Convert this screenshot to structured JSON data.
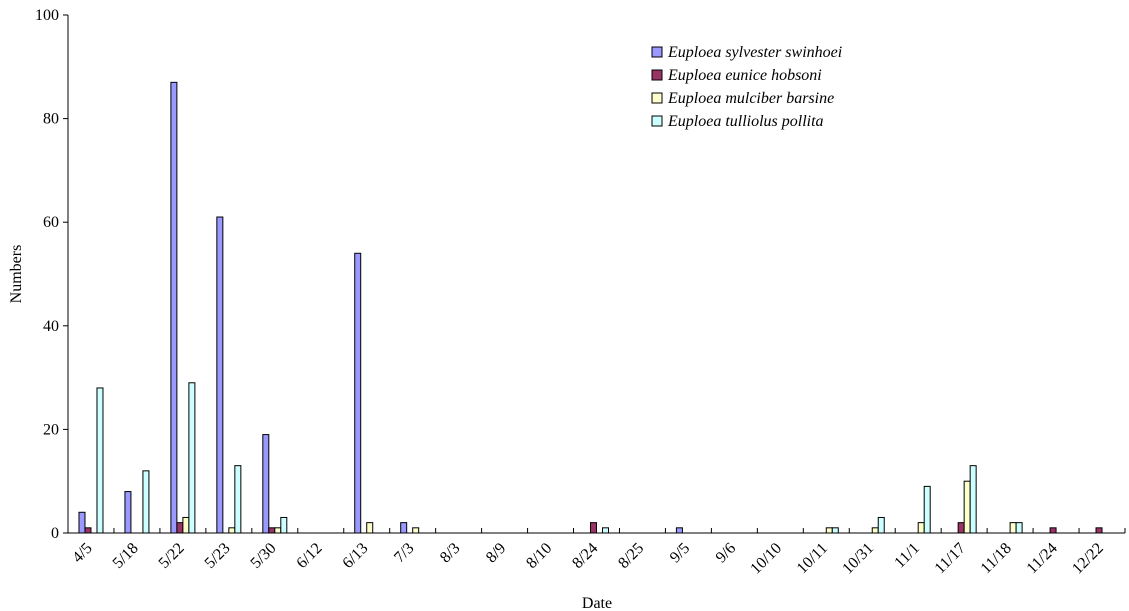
{
  "chart_data": {
    "type": "bar",
    "title": "",
    "xlabel": "Date",
    "ylabel": "Numbers",
    "ylim": [
      0,
      100
    ],
    "yticks": [
      0,
      20,
      40,
      60,
      80,
      100
    ],
    "grid": false,
    "legend_position": "top-right",
    "categories": [
      "4/5",
      "5/18",
      "5/22",
      "5/23",
      "5/30",
      "6/12",
      "6/13",
      "7/3",
      "8/3",
      "8/9",
      "8/10",
      "8/24",
      "8/25",
      "9/5",
      "9/6",
      "10/10",
      "10/11",
      "10/31",
      "11/1",
      "11/17",
      "11/18",
      "11/24",
      "12/22"
    ],
    "series": [
      {
        "name": "Euploea sylvester swinhoei",
        "color": "#9999ff",
        "values": [
          4,
          8,
          87,
          61,
          19,
          0,
          54,
          2,
          0,
          0,
          0,
          0,
          0,
          1,
          0,
          0,
          0,
          0,
          0,
          0,
          0,
          0,
          0
        ]
      },
      {
        "name": "Euploea eunice hobsoni",
        "color": "#993366",
        "values": [
          1,
          0,
          2,
          0,
          1,
          0,
          0,
          0,
          0,
          0,
          0,
          2,
          0,
          0,
          0,
          0,
          0,
          0,
          0,
          2,
          0,
          1,
          1
        ]
      },
      {
        "name": "Euploea mulciber barsine",
        "color": "#ffffcc",
        "values": [
          0,
          0,
          3,
          1,
          1,
          0,
          2,
          1,
          0,
          0,
          0,
          0,
          0,
          0,
          0,
          0,
          1,
          1,
          2,
          10,
          2,
          0,
          0
        ]
      },
      {
        "name": "Euploea tulliolus pollita",
        "color": "#ccffff",
        "values": [
          28,
          12,
          29,
          13,
          3,
          0,
          0,
          0,
          0,
          0,
          0,
          1,
          0,
          0,
          0,
          0,
          1,
          3,
          9,
          13,
          2,
          0,
          0
        ]
      }
    ]
  }
}
